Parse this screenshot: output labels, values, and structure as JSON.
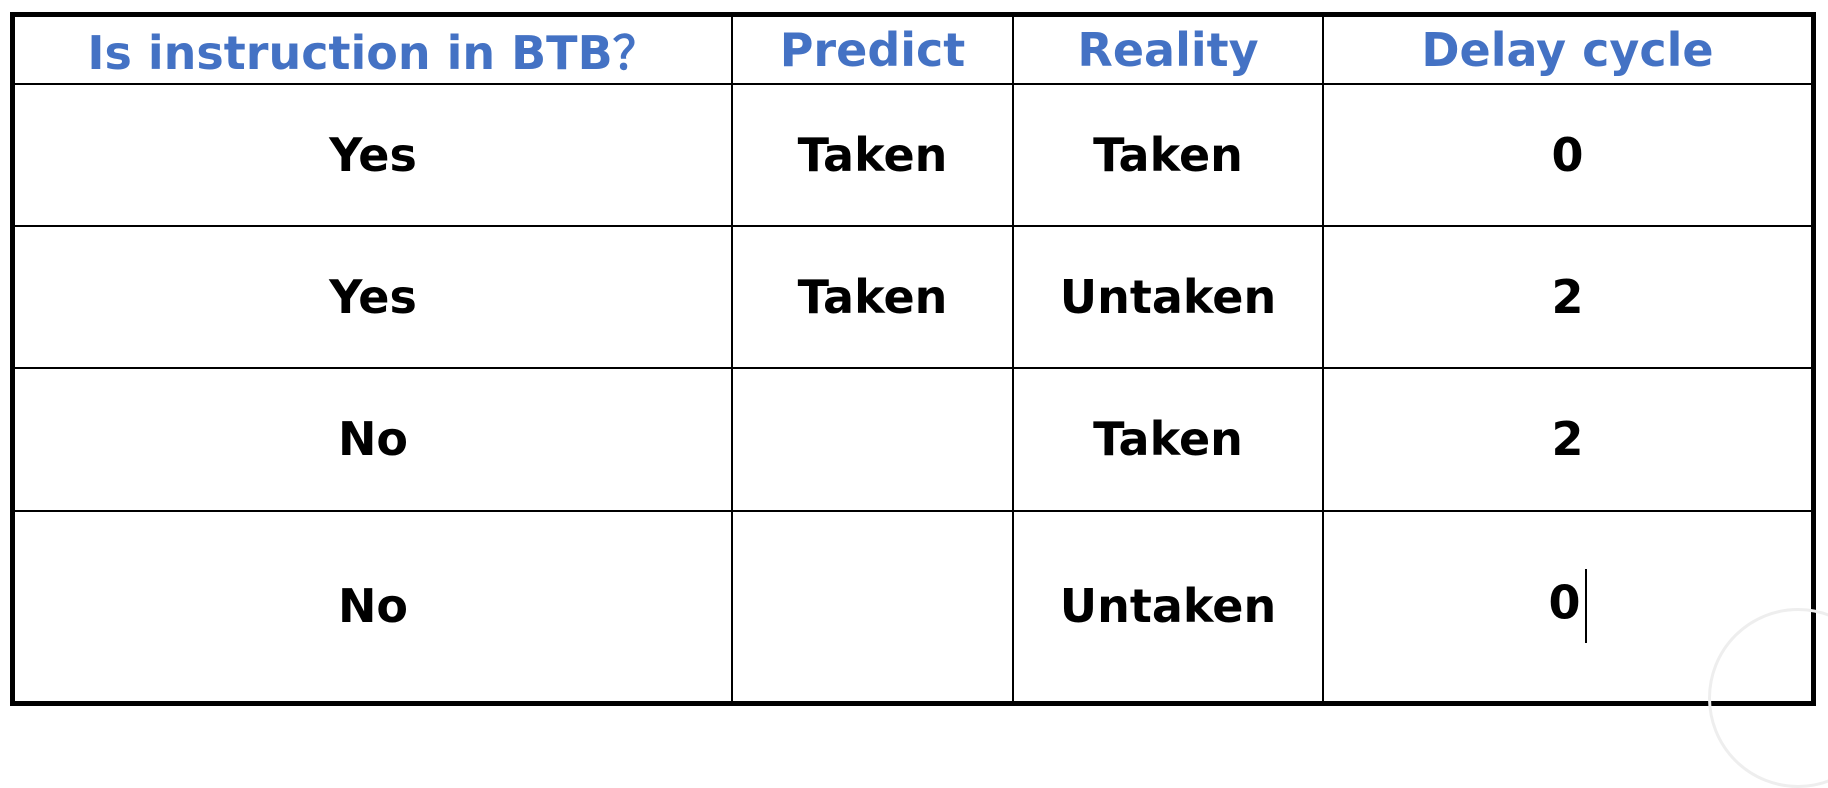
{
  "table": {
    "headers": [
      "Is instruction in BTB？",
      "Predict",
      "Reality",
      "Delay cycle"
    ],
    "rows": [
      [
        "Yes",
        "Taken",
        "Taken",
        "0"
      ],
      [
        "Yes",
        "Taken",
        "Untaken",
        "2"
      ],
      [
        "No",
        "",
        "Taken",
        "2"
      ],
      [
        "No",
        "",
        "Untaken",
        "0"
      ]
    ]
  },
  "colors": {
    "header_text": "#4472c4",
    "body_text": "#000000",
    "border": "#000000"
  }
}
